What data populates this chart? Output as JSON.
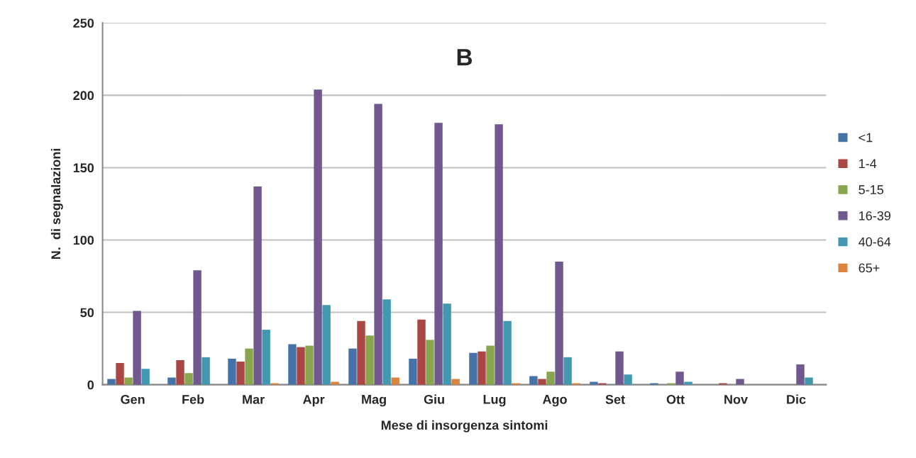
{
  "chart_data": {
    "type": "bar",
    "title": "B",
    "xlabel": "Mese di insorgenza sintomi",
    "ylabel": "N.  di segnalazioni",
    "categories": [
      "Gen",
      "Feb",
      "Mar",
      "Apr",
      "Mag",
      "Giu",
      "Lug",
      "Ago",
      "Set",
      "Ott",
      "Nov",
      "Dic"
    ],
    "series": [
      {
        "name": "<1",
        "color": "#4572a7",
        "values": [
          4,
          5,
          18,
          28,
          25,
          18,
          22,
          6,
          2,
          1,
          0,
          0
        ]
      },
      {
        "name": "1-4",
        "color": "#aa4643",
        "values": [
          15,
          17,
          16,
          26,
          44,
          45,
          23,
          4,
          1,
          0,
          1,
          0
        ]
      },
      {
        "name": "5-15",
        "color": "#89a54e",
        "values": [
          5,
          8,
          25,
          27,
          34,
          31,
          27,
          9,
          0,
          1,
          0,
          0
        ]
      },
      {
        "name": "16-39",
        "color": "#71588f",
        "values": [
          51,
          79,
          137,
          204,
          194,
          181,
          180,
          85,
          23,
          9,
          4,
          14
        ]
      },
      {
        "name": "40-64",
        "color": "#4198af",
        "values": [
          11,
          19,
          38,
          55,
          59,
          56,
          44,
          19,
          7,
          2,
          0,
          5
        ]
      },
      {
        "name": "65+",
        "color": "#db843d",
        "values": [
          0,
          0,
          1,
          2,
          5,
          4,
          1,
          1,
          0,
          0,
          0,
          0
        ]
      }
    ],
    "ylim": [
      0,
      250
    ],
    "yticks": [
      0,
      50,
      100,
      150,
      200,
      250
    ],
    "grid": "y",
    "legend": "right"
  }
}
